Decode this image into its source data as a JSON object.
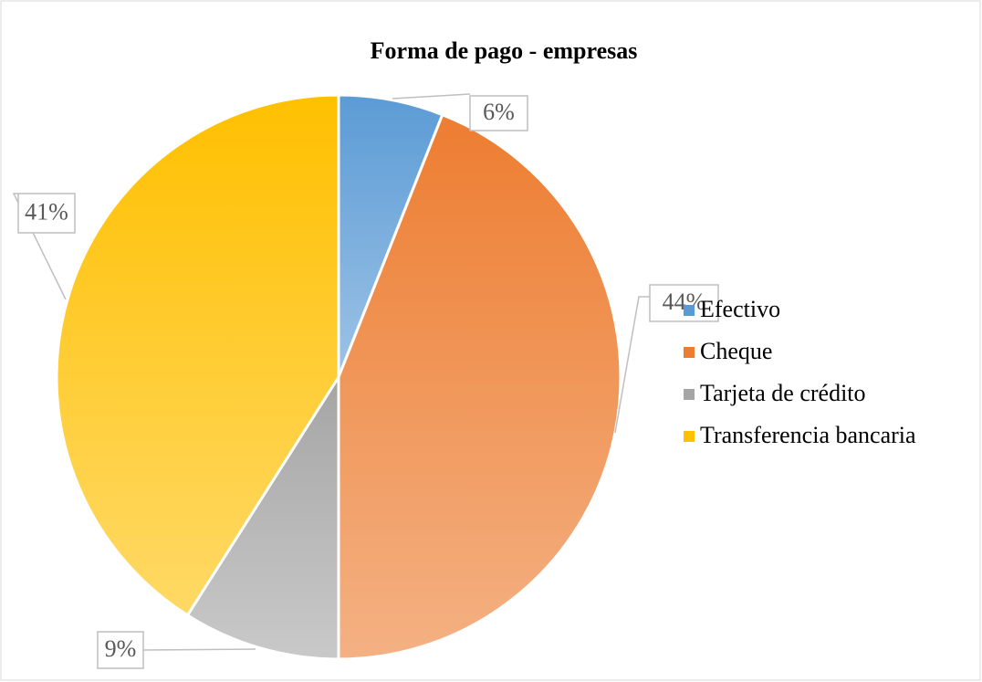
{
  "chart_data": {
    "type": "pie",
    "title": "Forma de pago - empresas",
    "categories": [
      "Efectivo",
      "Cheque",
      "Tarjeta de crédito",
      "Transferencia bancaria"
    ],
    "values": [
      6,
      44,
      9,
      41
    ],
    "value_labels": [
      "6%",
      "44%",
      "9%",
      "41%"
    ],
    "colors": [
      "#5b9bd5",
      "#ed7d31",
      "#a5a5a5",
      "#ffc000"
    ],
    "legend": "right"
  }
}
